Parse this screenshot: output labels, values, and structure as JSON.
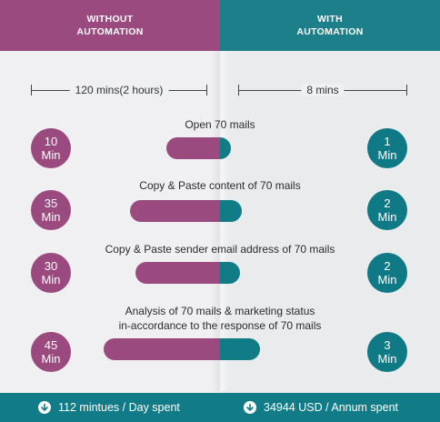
{
  "header": {
    "left": {
      "line1": "WITHOUT",
      "line2": "AUTOMATION"
    },
    "right": {
      "line1": "WITH",
      "line2": "AUTOMATION"
    }
  },
  "totals": {
    "without": "120 mins(2 hours)",
    "with": "8 mins"
  },
  "tasks": [
    {
      "label": "Open 70 mails",
      "without": {
        "num": "10",
        "unit": "Min"
      },
      "with": {
        "num": "1",
        "unit": "Min"
      }
    },
    {
      "label": "Copy & Paste content of 70 mails",
      "without": {
        "num": "35",
        "unit": "Min"
      },
      "with": {
        "num": "2",
        "unit": "Min"
      }
    },
    {
      "label": "Copy & Paste sender email address of 70 mails",
      "without": {
        "num": "30",
        "unit": "Min"
      },
      "with": {
        "num": "2",
        "unit": "Min"
      }
    },
    {
      "label_line1": "Analysis of 70 mails & marketing status",
      "label_line2": "in-accordance to the response of 70 mails",
      "without": {
        "num": "45",
        "unit": "Min"
      },
      "with": {
        "num": "3",
        "unit": "Min"
      }
    }
  ],
  "footer": {
    "left": "112 mintues / Day spent",
    "right": "34944 USD / Annum spent"
  },
  "colors": {
    "without": "#9b4a7f",
    "with": "#117b86"
  },
  "icons": {
    "footer": "arrow-down-circle-icon"
  }
}
